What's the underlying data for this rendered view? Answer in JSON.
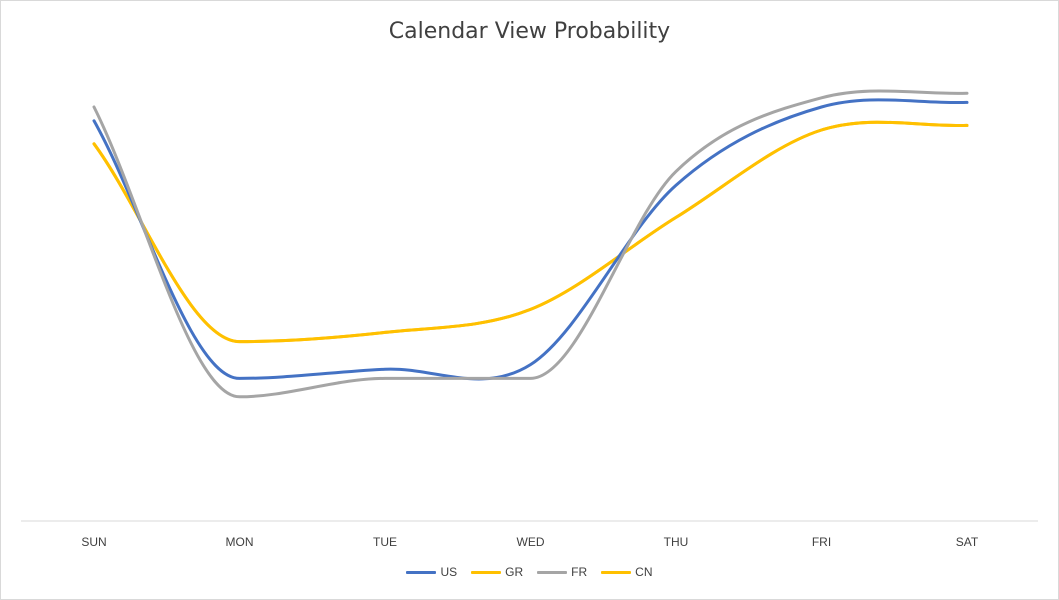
{
  "chart_data": {
    "type": "line",
    "title": "Calendar View Probability",
    "xlabel": "",
    "ylabel": "",
    "categories": [
      "SUN",
      "MON",
      "TUE",
      "WED",
      "THU",
      "FRI",
      "SAT"
    ],
    "ylim": [
      0,
      100
    ],
    "grid": false,
    "smooth": true,
    "legend_position": "bottom",
    "series": [
      {
        "name": "US",
        "color": "#4472C4",
        "values": [
          87,
          31,
          33,
          34,
          73,
          90,
          91
        ]
      },
      {
        "name": "GR",
        "color": "#FFC000",
        "values": [
          82,
          39,
          41,
          46,
          66,
          85,
          86
        ]
      },
      {
        "name": "FR",
        "color": "#A5A5A5",
        "values": [
          90,
          27,
          31,
          31,
          76,
          92,
          93
        ]
      },
      {
        "name": "CN",
        "color": "#FFC000",
        "values": [
          82,
          39,
          41,
          46,
          66,
          85,
          86
        ]
      }
    ]
  }
}
